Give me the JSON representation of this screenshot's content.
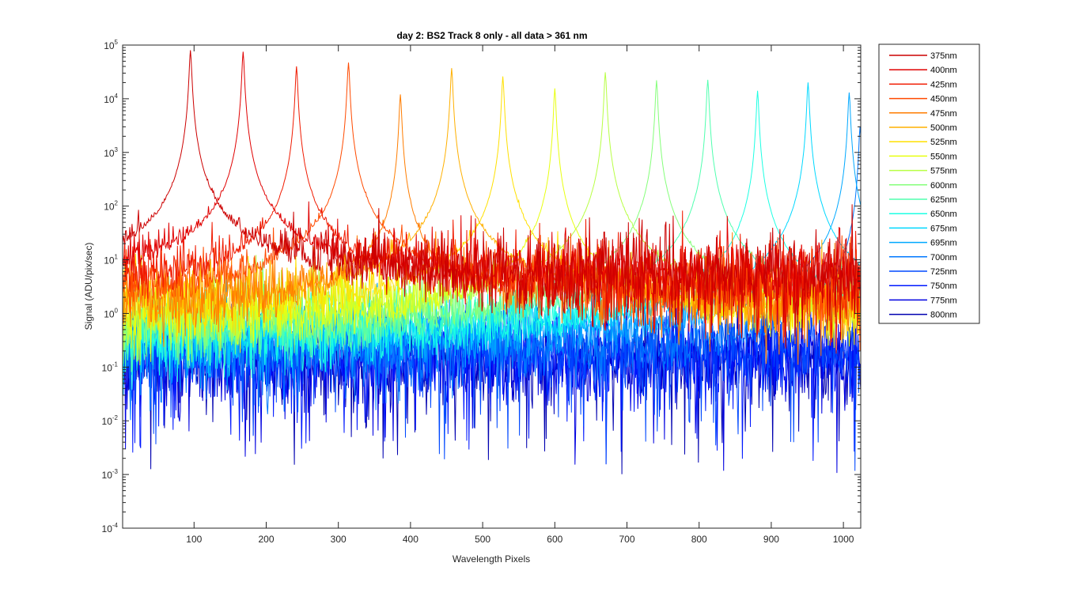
{
  "chart_data": {
    "type": "line",
    "title": "day 2: BS2   Track 8 only - all data > 361 nm",
    "xlabel": "Wavelength Pixels",
    "ylabel": "Signal (ADU/pix/sec)",
    "xlim": [
      1,
      1024
    ],
    "ylim": [
      0.0001,
      100000
    ],
    "yscale": "log",
    "x_ticks": [
      100,
      200,
      300,
      400,
      500,
      600,
      700,
      800,
      900,
      1000
    ],
    "x_tick_labels": [
      "100",
      "200",
      "300",
      "400",
      "500",
      "600",
      "700",
      "800",
      "900",
      "1000"
    ],
    "y_ticks": [
      {
        "value": 100000,
        "base": "10",
        "exp": "5"
      },
      {
        "value": 10000,
        "base": "10",
        "exp": "4"
      },
      {
        "value": 1000,
        "base": "10",
        "exp": "3"
      },
      {
        "value": 100,
        "base": "10",
        "exp": "2"
      },
      {
        "value": 10,
        "base": "10",
        "exp": "1"
      },
      {
        "value": 1,
        "base": "10",
        "exp": "0"
      },
      {
        "value": 0.1,
        "base": "10",
        "exp": "-1"
      },
      {
        "value": 0.01,
        "base": "10",
        "exp": "-2"
      },
      {
        "value": 0.001,
        "base": "10",
        "exp": "-3"
      },
      {
        "value": 0.0001,
        "base": "10",
        "exp": "-4"
      }
    ],
    "legend_position": "outside-right",
    "series": [
      {
        "name": "375nm",
        "color": "#cc0000",
        "peak_x": 95,
        "peak_y": 80000,
        "noise_level": 6
      },
      {
        "name": "400nm",
        "color": "#e00000",
        "peak_x": 168,
        "peak_y": 75000,
        "noise_level": 5
      },
      {
        "name": "425nm",
        "color": "#f01a00",
        "peak_x": 242,
        "peak_y": 40000,
        "noise_level": 4
      },
      {
        "name": "450nm",
        "color": "#ff4a00",
        "peak_x": 314,
        "peak_y": 47000,
        "noise_level": 3
      },
      {
        "name": "475nm",
        "color": "#ff7d00",
        "peak_x": 386,
        "peak_y": 12000,
        "noise_level": 2
      },
      {
        "name": "500nm",
        "color": "#ffb000",
        "peak_x": 457,
        "peak_y": 37000,
        "noise_level": 1.5
      },
      {
        "name": "525nm",
        "color": "#ffe000",
        "peak_x": 528,
        "peak_y": 26000,
        "noise_level": 1.2
      },
      {
        "name": "550nm",
        "color": "#e8ff10",
        "peak_x": 600,
        "peak_y": 15500,
        "noise_level": 1
      },
      {
        "name": "575nm",
        "color": "#b8ff45",
        "peak_x": 670,
        "peak_y": 31000,
        "noise_level": 0.8
      },
      {
        "name": "600nm",
        "color": "#85ff7a",
        "peak_x": 741,
        "peak_y": 22000,
        "noise_level": 0.6
      },
      {
        "name": "625nm",
        "color": "#50ffaf",
        "peak_x": 812,
        "peak_y": 22500,
        "noise_level": 0.5
      },
      {
        "name": "650nm",
        "color": "#1cffe3",
        "peak_x": 881,
        "peak_y": 14000,
        "noise_level": 0.4
      },
      {
        "name": "675nm",
        "color": "#00d8ff",
        "peak_x": 951,
        "peak_y": 20000,
        "noise_level": 0.35
      },
      {
        "name": "695nm",
        "color": "#00a8ff",
        "peak_x": 1008,
        "peak_y": 13000,
        "noise_level": 0.3
      },
      {
        "name": "700nm",
        "color": "#0078ff",
        "peak_x": 1023,
        "peak_y": 3000,
        "noise_level": 0.25
      },
      {
        "name": "725nm",
        "color": "#0048ff",
        "peak_x": null,
        "peak_y": null,
        "noise_level": 0.2
      },
      {
        "name": "750nm",
        "color": "#0018ff",
        "peak_x": null,
        "peak_y": null,
        "noise_level": 0.17
      },
      {
        "name": "775nm",
        "color": "#0000e0",
        "peak_x": null,
        "peak_y": null,
        "noise_level": 0.15
      },
      {
        "name": "800nm",
        "color": "#0000b0",
        "peak_x": null,
        "peak_y": null,
        "noise_level": 0.13
      }
    ]
  }
}
